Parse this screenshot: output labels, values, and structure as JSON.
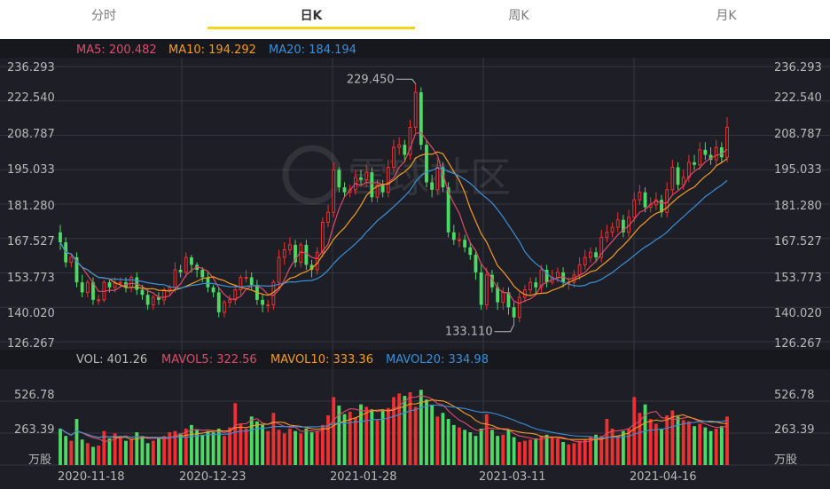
{
  "tabs": [
    {
      "label": "分时",
      "active": false
    },
    {
      "label": "日K",
      "active": true
    },
    {
      "label": "周K",
      "active": false
    },
    {
      "label": "月K",
      "active": false
    }
  ],
  "ma_legend": [
    {
      "label": "MA5: 200.482",
      "color": "#e04a6a"
    },
    {
      "label": "MA10: 194.292",
      "color": "#f59a23"
    },
    {
      "label": "MA20: 184.194",
      "color": "#3a8fd9"
    }
  ],
  "vol_legend": [
    {
      "label": "VOL: 401.26",
      "color": "#b8b8b8"
    },
    {
      "label": "MAVOL5: 322.56",
      "color": "#e04a6a"
    },
    {
      "label": "MAVOL10: 333.36",
      "color": "#f59a23"
    },
    {
      "label": "MAVOL20: 334.98",
      "color": "#3a8fd9"
    }
  ],
  "price_ticks": [
    "236.293",
    "222.540",
    "208.787",
    "195.033",
    "181.280",
    "167.527",
    "153.773",
    "140.020",
    "126.267"
  ],
  "vol_ticks": [
    "526.78",
    "263.39",
    "万股"
  ],
  "date_ticks": [
    "2020-11-18",
    "2020-12-23",
    "2021-01-28",
    "2021-03-11",
    "2021-04-16"
  ],
  "annotations": {
    "high": "229.450",
    "low": "133.110"
  },
  "watermark": "雪球社区",
  "colors": {
    "up": "#f03030",
    "down": "#4cd964",
    "bg": "#1e1f26",
    "grid": "#34363f",
    "text": "#b8b8b8"
  },
  "chart_data": {
    "type": "candlestick",
    "price_range": [
      126.267,
      236.293
    ],
    "volume_range": [
      0,
      790
    ],
    "close": [
      166,
      158,
      160,
      150,
      146,
      150,
      143,
      143,
      150,
      148,
      150,
      150,
      148,
      152,
      147,
      145,
      141,
      144,
      143,
      147,
      148,
      155,
      154,
      160,
      157,
      155,
      152,
      148,
      146,
      138,
      142,
      143,
      147,
      152,
      152,
      149,
      143,
      141,
      141,
      150,
      160,
      163,
      165,
      158,
      165,
      157,
      155,
      162,
      174,
      178,
      195,
      188,
      186,
      187,
      192,
      191,
      194,
      184,
      189,
      186,
      196,
      204,
      205,
      201,
      212,
      226,
      205,
      190,
      187,
      196,
      188,
      170,
      167,
      167,
      164,
      161,
      154,
      141,
      153,
      148,
      142,
      146,
      140,
      136,
      144,
      147,
      150,
      148,
      155,
      150,
      152,
      154,
      150,
      150,
      153,
      157,
      160,
      162,
      160,
      168,
      170,
      172,
      175,
      170,
      176,
      183,
      186,
      180,
      181,
      183,
      178,
      187,
      196,
      189,
      192,
      198,
      197,
      203,
      201,
      199,
      204,
      200,
      212
    ],
    "open": [
      170,
      166,
      158,
      160,
      150,
      146,
      150,
      143,
      143,
      150,
      148,
      150,
      150,
      148,
      152,
      147,
      145,
      141,
      144,
      143,
      147,
      148,
      155,
      154,
      160,
      157,
      155,
      152,
      148,
      146,
      138,
      142,
      143,
      147,
      152,
      152,
      149,
      143,
      141,
      141,
      150,
      160,
      163,
      165,
      158,
      165,
      157,
      155,
      162,
      174,
      178,
      195,
      188,
      186,
      187,
      192,
      191,
      194,
      184,
      189,
      186,
      196,
      204,
      205,
      201,
      212,
      226,
      205,
      190,
      187,
      196,
      188,
      170,
      167,
      167,
      164,
      161,
      154,
      141,
      153,
      148,
      142,
      146,
      140,
      136,
      144,
      147,
      150,
      148,
      155,
      150,
      152,
      154,
      150,
      150,
      153,
      157,
      160,
      162,
      160,
      168,
      170,
      172,
      175,
      170,
      176,
      183,
      186,
      180,
      181,
      183,
      178,
      187,
      196,
      189,
      192,
      198,
      197,
      203,
      201,
      199,
      204,
      200
    ],
    "high": [
      173,
      168,
      161,
      162,
      153,
      151,
      152,
      145,
      151,
      151,
      152,
      152,
      152,
      153,
      154,
      149,
      147,
      145,
      146,
      148,
      149,
      158,
      157,
      162,
      161,
      158,
      156,
      154,
      149,
      148,
      143,
      145,
      149,
      153,
      155,
      154,
      151,
      145,
      143,
      151,
      163,
      166,
      168,
      167,
      166,
      167,
      159,
      164,
      176,
      181,
      198,
      196,
      190,
      189,
      195,
      195,
      197,
      196,
      191,
      191,
      199,
      207,
      208,
      207,
      215,
      229.45,
      228,
      207,
      193,
      199,
      198,
      190,
      173,
      170,
      169,
      166,
      163,
      157,
      156,
      155,
      150,
      148,
      148,
      142,
      146,
      149,
      152,
      152,
      157,
      157,
      155,
      156,
      156,
      152,
      155,
      160,
      163,
      164,
      164,
      171,
      173,
      174,
      178,
      177,
      179,
      186,
      189,
      188,
      184,
      186,
      185,
      190,
      199,
      198,
      195,
      201,
      201,
      206,
      206,
      204,
      207,
      206,
      216
    ],
    "low": [
      163,
      156,
      156,
      148,
      144,
      144,
      141,
      141,
      142,
      146,
      146,
      148,
      146,
      146,
      145,
      143,
      139,
      139,
      141,
      141,
      145,
      146,
      152,
      152,
      154,
      152,
      150,
      146,
      144,
      136,
      136,
      140,
      141,
      145,
      150,
      147,
      141,
      138,
      138,
      139,
      148,
      157,
      161,
      156,
      156,
      155,
      152,
      153,
      160,
      172,
      176,
      186,
      184,
      184,
      185,
      189,
      188,
      182,
      182,
      184,
      184,
      194,
      201,
      198,
      199,
      210,
      203,
      188,
      184,
      185,
      186,
      168,
      165,
      164,
      162,
      159,
      151,
      139,
      139,
      146,
      139,
      139,
      137,
      133.11,
      134,
      142,
      145,
      145,
      146,
      148,
      149,
      150,
      148,
      147,
      148,
      151,
      155,
      158,
      158,
      158,
      166,
      168,
      170,
      168,
      168,
      174,
      181,
      178,
      178,
      179,
      176,
      176,
      185,
      187,
      187,
      190,
      195,
      195,
      199,
      197,
      197,
      198,
      198
    ],
    "volume": [
      300,
      240,
      200,
      380,
      210,
      180,
      150,
      160,
      280,
      220,
      260,
      240,
      200,
      210,
      270,
      240,
      180,
      200,
      220,
      240,
      270,
      280,
      260,
      300,
      330,
      290,
      250,
      280,
      270,
      300,
      240,
      310,
      510,
      340,
      300,
      400,
      360,
      330,
      280,
      430,
      290,
      260,
      300,
      280,
      260,
      300,
      270,
      280,
      330,
      410,
      560,
      490,
      420,
      440,
      390,
      500,
      480,
      460,
      370,
      450,
      470,
      560,
      590,
      570,
      600,
      480,
      620,
      540,
      490,
      400,
      430,
      380,
      330,
      310,
      290,
      270,
      240,
      300,
      420,
      290,
      240,
      250,
      290,
      230,
      190,
      200,
      210,
      220,
      240,
      250,
      230,
      220,
      190,
      170,
      180,
      200,
      210,
      230,
      250,
      240,
      380,
      300,
      240,
      280,
      300,
      560,
      430,
      500,
      380,
      340,
      300,
      410,
      450,
      400,
      370,
      360,
      320,
      340,
      310,
      280,
      300,
      320,
      400
    ]
  }
}
